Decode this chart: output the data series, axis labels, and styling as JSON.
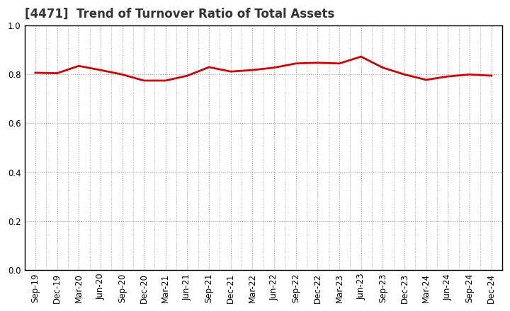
{
  "title": "[4471]  Trend of Turnover Ratio of Total Assets",
  "x_labels": [
    "Sep-19",
    "Dec-19",
    "Mar-20",
    "Jun-20",
    "Sep-20",
    "Dec-20",
    "Mar-21",
    "Jun-21",
    "Sep-21",
    "Dec-21",
    "Mar-22",
    "Jun-22",
    "Sep-22",
    "Dec-22",
    "Mar-23",
    "Jun-23",
    "Sep-23",
    "Dec-23",
    "Mar-24",
    "Jun-24",
    "Sep-24",
    "Dec-24"
  ],
  "y_values": [
    0.807,
    0.805,
    0.835,
    0.818,
    0.8,
    0.775,
    0.775,
    0.795,
    0.83,
    0.812,
    0.818,
    0.828,
    0.845,
    0.848,
    0.845,
    0.873,
    0.828,
    0.8,
    0.778,
    0.792,
    0.8,
    0.795
  ],
  "line_color": "#cc0000",
  "line_width": 2.0,
  "ylim": [
    0.0,
    1.0
  ],
  "yticks": [
    0.0,
    0.2,
    0.4,
    0.6,
    0.8,
    1.0
  ],
  "background_color": "#ffffff",
  "grid_color": "#999999",
  "title_fontsize": 12,
  "tick_fontsize": 8.5
}
